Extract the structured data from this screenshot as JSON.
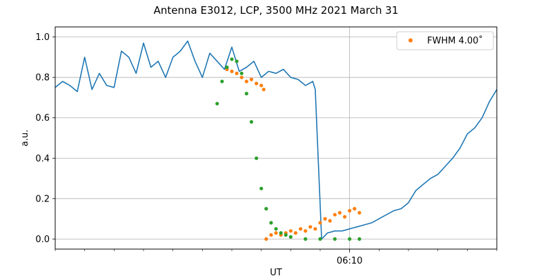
{
  "chart_data": {
    "type": "line",
    "title": "Antenna E3012, LCP, 3500 MHz 2021 March 31",
    "xlabel": "UT",
    "ylabel": "a.u.",
    "x_unit": "UT time (hours:minutes)",
    "xlim": [
      "06:00:00",
      "06:15:00"
    ],
    "ylim": [
      -0.05,
      1.05
    ],
    "xticks": [
      {
        "value": "06:10",
        "label": "06:10"
      }
    ],
    "yticks": [
      0.0,
      0.2,
      0.4,
      0.6,
      0.8,
      1.0
    ],
    "ytick_labels": [
      "0.0",
      "0.2",
      "0.4",
      "0.6",
      "0.8",
      "1.0"
    ],
    "grid": true,
    "legend": {
      "position": "top-right",
      "entries": [
        "FWHM 4.00$^\\circ$"
      ],
      "labels": [
        "FWHM 4.00˚"
      ]
    },
    "series": [
      {
        "kind": "line",
        "color": "#1f77b4",
        "points": [
          [
            "06:00:00",
            0.75
          ],
          [
            "06:00:15",
            0.78
          ],
          [
            "06:00:30",
            0.76
          ],
          [
            "06:00:45",
            0.73
          ],
          [
            "06:01:00",
            0.9
          ],
          [
            "06:01:15",
            0.74
          ],
          [
            "06:01:30",
            0.82
          ],
          [
            "06:01:45",
            0.76
          ],
          [
            "06:02:00",
            0.75
          ],
          [
            "06:02:15",
            0.93
          ],
          [
            "06:02:30",
            0.9
          ],
          [
            "06:02:45",
            0.82
          ],
          [
            "06:03:00",
            0.97
          ],
          [
            "06:03:15",
            0.85
          ],
          [
            "06:03:30",
            0.88
          ],
          [
            "06:03:45",
            0.8
          ],
          [
            "06:04:00",
            0.9
          ],
          [
            "06:04:15",
            0.93
          ],
          [
            "06:04:30",
            0.98
          ],
          [
            "06:04:45",
            0.88
          ],
          [
            "06:05:00",
            0.8
          ],
          [
            "06:05:15",
            0.92
          ],
          [
            "06:05:30",
            0.88
          ],
          [
            "06:05:45",
            0.84
          ],
          [
            "06:06:00",
            0.95
          ],
          [
            "06:06:15",
            0.83
          ],
          [
            "06:06:30",
            0.85
          ],
          [
            "06:06:45",
            0.88
          ],
          [
            "06:07:00",
            0.8
          ],
          [
            "06:07:15",
            0.83
          ],
          [
            "06:07:30",
            0.82
          ],
          [
            "06:07:45",
            0.84
          ],
          [
            "06:08:00",
            0.8
          ],
          [
            "06:08:15",
            0.79
          ],
          [
            "06:08:30",
            0.76
          ],
          [
            "06:08:45",
            0.78
          ],
          [
            "06:08:50",
            0.74
          ],
          [
            "06:09:03",
            0.0
          ],
          [
            "06:09:15",
            0.03
          ],
          [
            "06:09:30",
            0.04
          ],
          [
            "06:09:45",
            0.04
          ],
          [
            "06:10:00",
            0.05
          ],
          [
            "06:10:15",
            0.06
          ],
          [
            "06:10:30",
            0.07
          ],
          [
            "06:10:45",
            0.08
          ],
          [
            "06:11:00",
            0.1
          ],
          [
            "06:11:15",
            0.12
          ],
          [
            "06:11:30",
            0.14
          ],
          [
            "06:11:45",
            0.15
          ],
          [
            "06:12:00",
            0.18
          ],
          [
            "06:12:15",
            0.24
          ],
          [
            "06:12:30",
            0.27
          ],
          [
            "06:12:45",
            0.3
          ],
          [
            "06:13:00",
            0.32
          ],
          [
            "06:13:15",
            0.36
          ],
          [
            "06:13:30",
            0.4
          ],
          [
            "06:13:45",
            0.45
          ],
          [
            "06:14:00",
            0.52
          ],
          [
            "06:14:15",
            0.55
          ],
          [
            "06:14:30",
            0.6
          ],
          [
            "06:14:45",
            0.68
          ],
          [
            "06:15:00",
            0.74
          ]
        ]
      },
      {
        "kind": "scatter",
        "name": "FWHM 4.00˚",
        "color": "#ff7f0e",
        "points": [
          [
            "06:05:50",
            0.84
          ],
          [
            "06:06:00",
            0.83
          ],
          [
            "06:06:10",
            0.82
          ],
          [
            "06:06:20",
            0.8
          ],
          [
            "06:06:30",
            0.78
          ],
          [
            "06:06:40",
            0.79
          ],
          [
            "06:06:50",
            0.77
          ],
          [
            "06:07:00",
            0.76
          ],
          [
            "06:07:05",
            0.74
          ],
          [
            "06:07:10",
            0.0
          ],
          [
            "06:07:20",
            0.02
          ],
          [
            "06:07:30",
            0.03
          ],
          [
            "06:07:40",
            0.02
          ],
          [
            "06:07:50",
            0.03
          ],
          [
            "06:08:00",
            0.04
          ],
          [
            "06:08:10",
            0.03
          ],
          [
            "06:08:20",
            0.05
          ],
          [
            "06:08:30",
            0.04
          ],
          [
            "06:08:40",
            0.06
          ],
          [
            "06:08:50",
            0.05
          ],
          [
            "06:09:00",
            0.08
          ],
          [
            "06:09:10",
            0.1
          ],
          [
            "06:09:20",
            0.09
          ],
          [
            "06:09:30",
            0.12
          ],
          [
            "06:09:40",
            0.13
          ],
          [
            "06:09:50",
            0.11
          ],
          [
            "06:10:00",
            0.14
          ],
          [
            "06:10:10",
            0.15
          ],
          [
            "06:10:20",
            0.13
          ]
        ]
      },
      {
        "kind": "scatter",
        "color": "#2ca02c",
        "points": [
          [
            "06:05:30",
            0.67
          ],
          [
            "06:05:40",
            0.78
          ],
          [
            "06:05:50",
            0.85
          ],
          [
            "06:06:00",
            0.89
          ],
          [
            "06:06:10",
            0.88
          ],
          [
            "06:06:20",
            0.82
          ],
          [
            "06:06:30",
            0.72
          ],
          [
            "06:06:40",
            0.58
          ],
          [
            "06:06:50",
            0.4
          ],
          [
            "06:07:00",
            0.25
          ],
          [
            "06:07:10",
            0.15
          ],
          [
            "06:07:20",
            0.08
          ],
          [
            "06:07:30",
            0.05
          ],
          [
            "06:07:40",
            0.03
          ],
          [
            "06:07:50",
            0.02
          ],
          [
            "06:08:00",
            0.01
          ],
          [
            "06:08:30",
            0.0
          ],
          [
            "06:09:00",
            0.0
          ],
          [
            "06:09:30",
            0.0
          ],
          [
            "06:10:00",
            0.0
          ],
          [
            "06:10:20",
            0.0
          ]
        ]
      }
    ]
  }
}
